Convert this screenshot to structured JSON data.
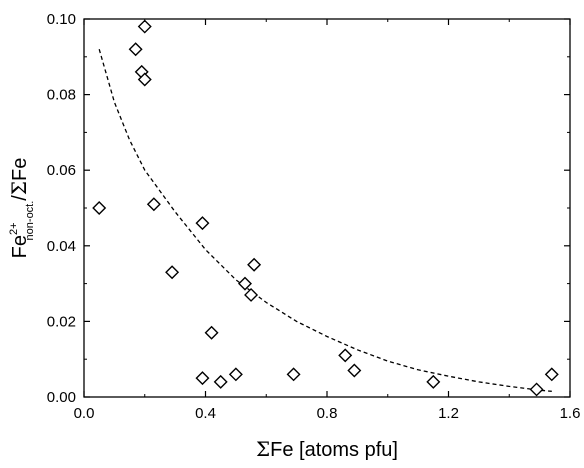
{
  "chart_data": {
    "type": "scatter",
    "xlim": [
      0.0,
      1.6
    ],
    "ylim": [
      0.0,
      0.1
    ],
    "x_ticks": [
      "0.0",
      "0.4",
      "0.8",
      "1.2",
      "1.6"
    ],
    "y_ticks": [
      "0.00",
      "0.02",
      "0.04",
      "0.06",
      "0.08",
      "0.10"
    ],
    "xlabel": {
      "sigma": "Σ",
      "text": "Fe [atoms pfu]"
    },
    "ylabel": {
      "base": "Fe",
      "sup": "2+",
      "sub": "non-oct.",
      "mid": "/",
      "sigma": "Σ",
      "tail": "Fe"
    },
    "grid": false,
    "marker": "open-diamond",
    "series": [
      {
        "points": [
          [
            0.05,
            0.05
          ],
          [
            0.17,
            0.092
          ],
          [
            0.19,
            0.086
          ],
          [
            0.2,
            0.084
          ],
          [
            0.2,
            0.098
          ],
          [
            0.23,
            0.051
          ],
          [
            0.29,
            0.033
          ],
          [
            0.39,
            0.046
          ],
          [
            0.39,
            0.005
          ],
          [
            0.42,
            0.017
          ],
          [
            0.45,
            0.004
          ],
          [
            0.5,
            0.006
          ],
          [
            0.53,
            0.03
          ],
          [
            0.55,
            0.027
          ],
          [
            0.56,
            0.035
          ],
          [
            0.69,
            0.006
          ],
          [
            0.86,
            0.011
          ],
          [
            0.89,
            0.007
          ],
          [
            1.15,
            0.004
          ],
          [
            1.49,
            0.002
          ],
          [
            1.54,
            0.006
          ]
        ]
      }
    ],
    "trend": {
      "style": "dashed",
      "points": [
        [
          0.05,
          0.092
        ],
        [
          0.1,
          0.078
        ],
        [
          0.15,
          0.068
        ],
        [
          0.2,
          0.06
        ],
        [
          0.3,
          0.049
        ],
        [
          0.4,
          0.039
        ],
        [
          0.5,
          0.031
        ],
        [
          0.6,
          0.025
        ],
        [
          0.7,
          0.02
        ],
        [
          0.8,
          0.016
        ],
        [
          0.9,
          0.0125
        ],
        [
          1.0,
          0.0095
        ],
        [
          1.1,
          0.0072
        ],
        [
          1.2,
          0.0055
        ],
        [
          1.3,
          0.004
        ],
        [
          1.4,
          0.0028
        ],
        [
          1.5,
          0.0018
        ],
        [
          1.54,
          0.0015
        ]
      ]
    },
    "colors": {
      "axis": "#000000",
      "marker": "#000000",
      "trend": "#000000"
    }
  }
}
